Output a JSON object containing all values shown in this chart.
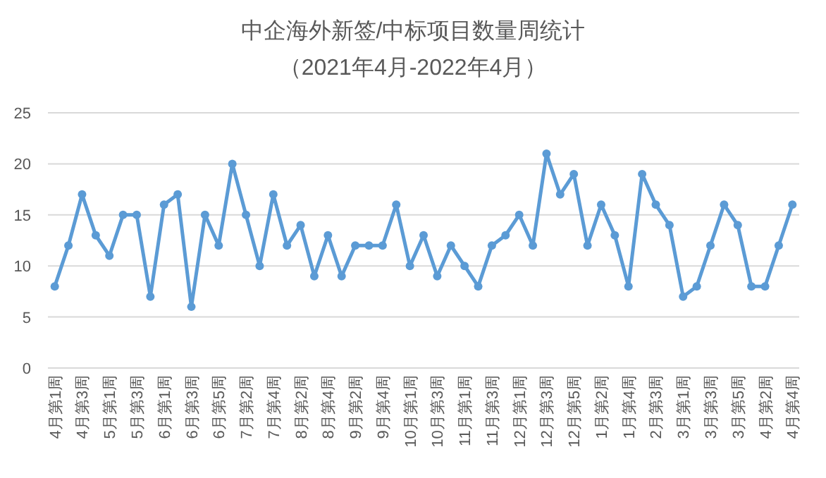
{
  "chart_data": {
    "type": "line",
    "title": "中企海外新签/中标项目数量周统计",
    "subtitle": "（2021年4月-2022年4月）",
    "categories": [
      "4月第1周",
      null,
      "4月第3周",
      null,
      "5月第1周",
      null,
      "5月第3周",
      null,
      "6月第1周",
      null,
      "6月第3周",
      null,
      "6月第5周",
      null,
      "7月第2周",
      null,
      "7月第4周",
      null,
      "8月第2周",
      null,
      "8月第4周",
      null,
      "9月第2周",
      null,
      "9月第4周",
      null,
      "10月第1周",
      null,
      "10月第3周",
      null,
      "11月第1周",
      null,
      "11月第3周",
      null,
      "12月第1周",
      null,
      "12月第3周",
      null,
      "12月第5周",
      null,
      "1月第2周",
      null,
      "1月第4周",
      null,
      "2月第3周",
      null,
      "3月第1周",
      null,
      "3月第3周",
      null,
      "3月第5周",
      null,
      "4月第2周",
      null,
      "4月第4周"
    ],
    "series": [
      {
        "color": "#5b9bd5",
        "values": [
          8,
          12,
          17,
          13,
          11,
          15,
          15,
          7,
          16,
          17,
          6,
          15,
          12,
          20,
          15,
          10,
          17,
          12,
          14,
          9,
          13,
          9,
          12,
          12,
          12,
          16,
          10,
          13,
          9,
          12,
          10,
          8,
          12,
          13,
          15,
          12,
          21,
          17,
          19,
          12,
          16,
          13,
          8,
          19,
          16,
          14,
          7,
          8,
          12,
          16,
          14,
          8,
          8,
          12,
          16
        ]
      }
    ],
    "ylim": [
      0,
      25
    ],
    "yticks": [
      0,
      5,
      10,
      15,
      20,
      25
    ],
    "grid": "y",
    "marker": "circle",
    "line_style": "solid"
  }
}
